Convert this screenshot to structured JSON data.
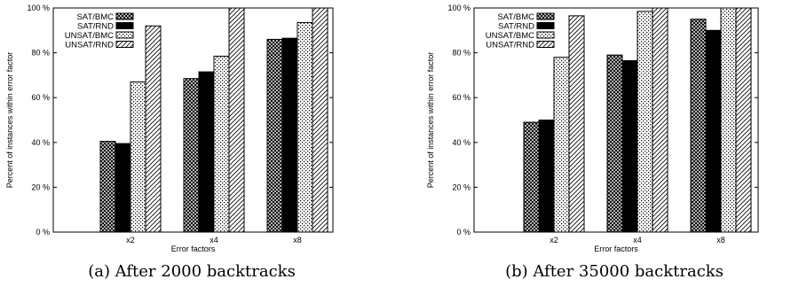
{
  "chart_data": [
    {
      "type": "bar",
      "caption": "(a) After 2000 backtracks",
      "xlabel": "Error factors",
      "ylabel": "Percent of instances within error factor",
      "categories": [
        "x2",
        "x4",
        "x8"
      ],
      "ylim": [
        0,
        100
      ],
      "yticks": [
        "0 %",
        "20 %",
        "40 %",
        "60 %",
        "80 %",
        "100 %"
      ],
      "legend_position": "top-left",
      "grid": false,
      "series": [
        {
          "name": "SAT/BMC",
          "values": [
            40.5,
            68.5,
            86
          ],
          "pattern": "crosshatch"
        },
        {
          "name": "SAT/RND",
          "values": [
            39.5,
            71.5,
            86.5
          ],
          "pattern": "solid-black"
        },
        {
          "name": "UNSAT/BMC",
          "values": [
            67,
            78.5,
            93.5
          ],
          "pattern": "dots"
        },
        {
          "name": "UNSAT/RND",
          "values": [
            92,
            100,
            100
          ],
          "pattern": "diagonal"
        }
      ]
    },
    {
      "type": "bar",
      "caption": "(b) After 35000 backtracks",
      "xlabel": "Error factors",
      "ylabel": "Percent of instances within error factor",
      "categories": [
        "x2",
        "x4",
        "x8"
      ],
      "ylim": [
        0,
        100
      ],
      "yticks": [
        "0 %",
        "20 %",
        "40 %",
        "60 %",
        "80 %",
        "100 %"
      ],
      "legend_position": "top-left",
      "grid": false,
      "series": [
        {
          "name": "SAT/BMC",
          "values": [
            49,
            79,
            95
          ],
          "pattern": "crosshatch"
        },
        {
          "name": "SAT/RND",
          "values": [
            50,
            76.5,
            90
          ],
          "pattern": "solid-black"
        },
        {
          "name": "UNSAT/BMC",
          "values": [
            78,
            98.5,
            100
          ],
          "pattern": "dots"
        },
        {
          "name": "UNSAT/RND",
          "values": [
            96.5,
            100,
            100
          ],
          "pattern": "diagonal"
        }
      ]
    }
  ]
}
